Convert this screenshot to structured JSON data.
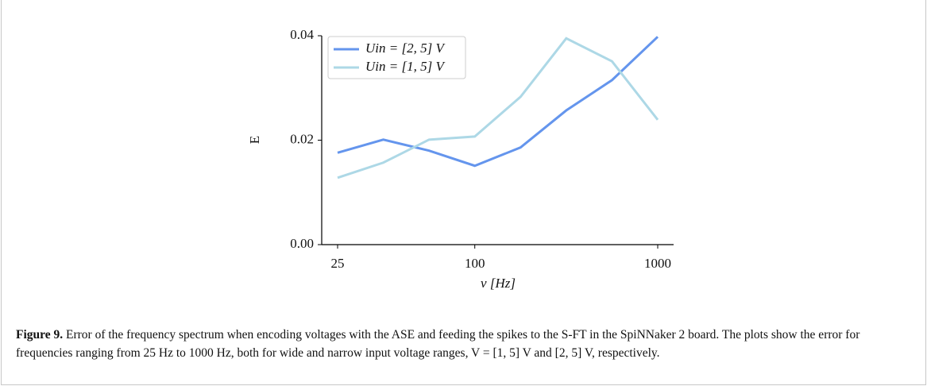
{
  "chart_data": {
    "type": "line",
    "y_label": "E",
    "x_label": "ν [Hz]",
    "categories": [
      "25",
      null,
      null,
      "100",
      null,
      null,
      null,
      "1000"
    ],
    "series": [
      {
        "name": "Uin = [2, 5] V",
        "color": "#6495ed",
        "values": [
          0.0176,
          0.0201,
          0.018,
          0.0151,
          0.0186,
          0.0257,
          0.0315,
          0.0398
        ]
      },
      {
        "name": "Uin = [1, 5] V",
        "color": "#add8e6",
        "values": [
          0.0128,
          0.0157,
          0.0201,
          0.0207,
          0.0283,
          0.0395,
          0.0351,
          0.0239
        ]
      }
    ],
    "ylim": [
      0,
      0.04
    ],
    "yticks": [
      {
        "value": 0,
        "label": "0.00"
      },
      {
        "value": 0.02,
        "label": "0.02"
      },
      {
        "value": 0.04,
        "label": "0.04"
      }
    ],
    "legend": "upper left",
    "grid": false
  },
  "caption": {
    "label": "Figure 9.",
    "text": "Error of the frequency spectrum when encoding voltages with the ASE and feeding the spikes to the S-FT in the SpiNNaker 2 board. The plots show the error for frequencies ranging from 25 Hz to 1000 Hz, both for wide and narrow input voltage ranges, V = [1, 5] V and [2, 5] V, respectively."
  }
}
